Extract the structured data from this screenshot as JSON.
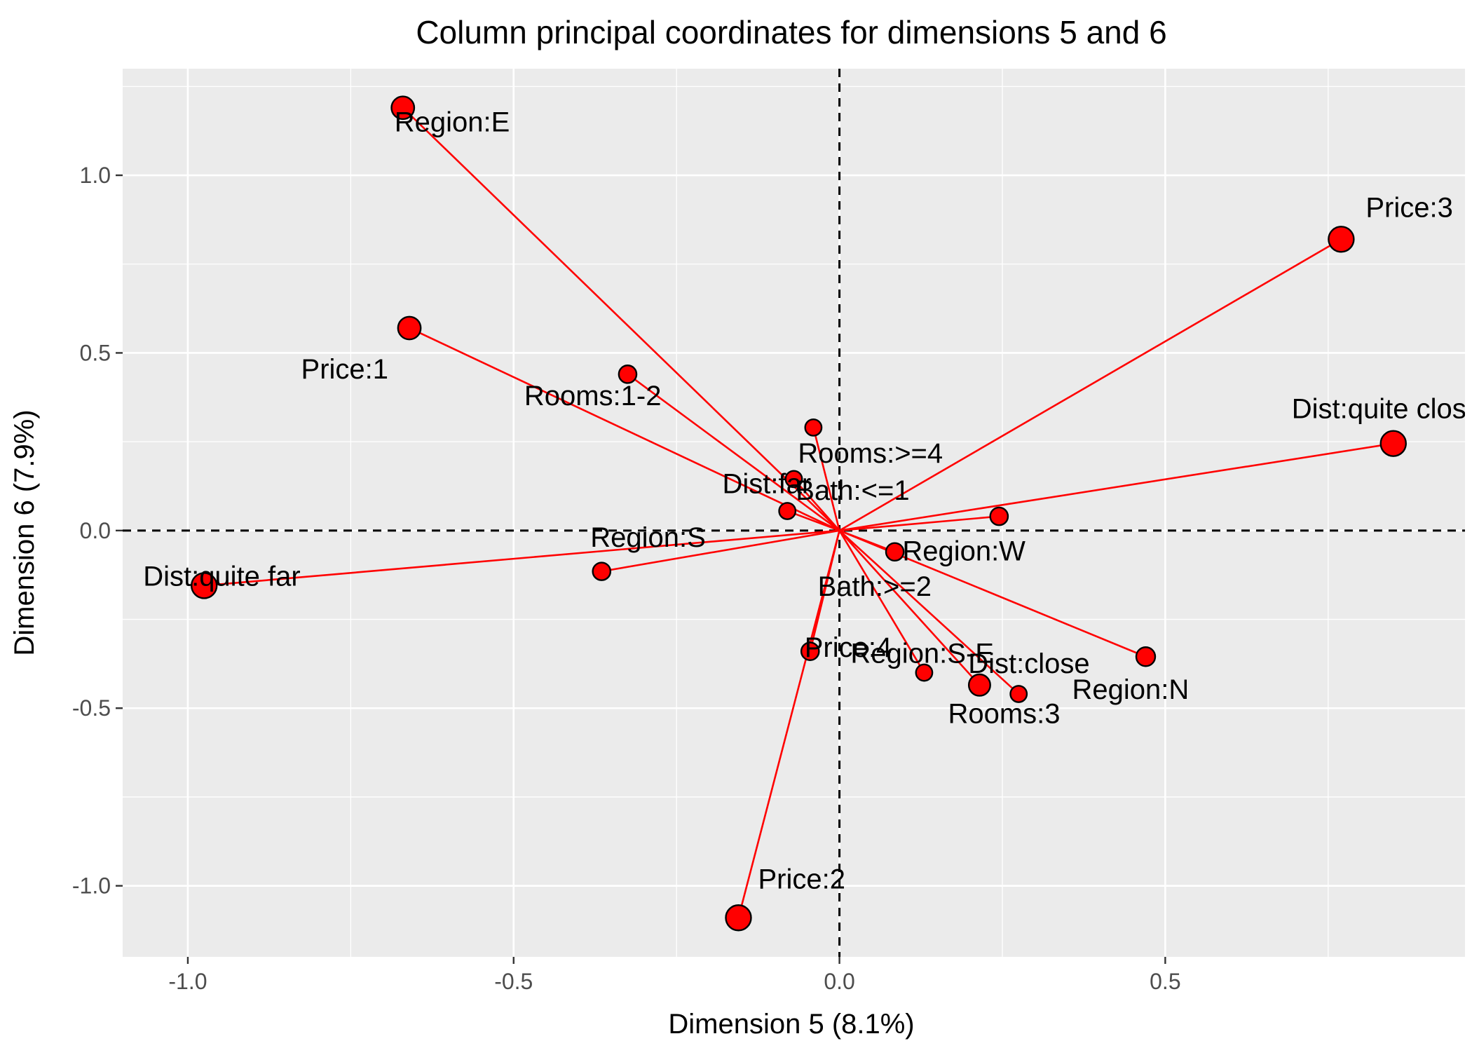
{
  "chart_data": {
    "type": "scatter",
    "title": "Column principal coordinates for dimensions 5 and 6",
    "xlabel": "Dimension 5 (8.1%)",
    "ylabel": "Dimension 6 (7.9%)",
    "xlim": [
      -1.1,
      0.96
    ],
    "ylim": [
      -1.2,
      1.3
    ],
    "x_ticks": [
      -1.0,
      -0.5,
      0.0,
      0.5
    ],
    "x_tick_labels": [
      "-1.0",
      "-0.5",
      "0.0",
      "0.5"
    ],
    "y_ticks": [
      -1.0,
      -0.5,
      0.0,
      0.5,
      1.0
    ],
    "y_tick_labels": [
      "-1.0",
      "-0.5",
      "0.0",
      "0.5",
      "1.0"
    ],
    "grid": true,
    "reference_lines": {
      "x": 0,
      "y": 0,
      "style": "dashed"
    },
    "vectors_from_origin": true,
    "colors": {
      "panel": "#EBEBEB",
      "grid": "#FFFFFF",
      "point_fill": "#FF0000",
      "segment": "#FF0000",
      "point_stroke": "#000000",
      "text": "#000000",
      "tick_text": "#4D4D4D"
    },
    "points": [
      {
        "label": "Region:E",
        "x": -0.67,
        "y": 1.19,
        "weight": 0.8
      },
      {
        "label": "Price:3",
        "x": 0.77,
        "y": 0.82,
        "weight": 1.0
      },
      {
        "label": "Price:1",
        "x": -0.66,
        "y": 0.57,
        "weight": 0.8
      },
      {
        "label": "Rooms:1-2",
        "x": -0.325,
        "y": 0.44,
        "weight": 0.4
      },
      {
        "label": "Dist:quite close",
        "x": 0.85,
        "y": 0.245,
        "weight": 1.0
      },
      {
        "label": "Rooms:>=4",
        "x": -0.04,
        "y": 0.29,
        "weight": 0.3
      },
      {
        "label": "Dist:far",
        "x": -0.07,
        "y": 0.145,
        "weight": 0.3
      },
      {
        "label": "Bath:<=1",
        "x": -0.08,
        "y": 0.055,
        "weight": 0.3
      },
      {
        "label": "Region:S",
        "x": -0.365,
        "y": -0.115,
        "weight": 0.4
      },
      {
        "label": "Dist:quite far",
        "x": -0.975,
        "y": -0.155,
        "weight": 1.0
      },
      {
        "label": "Region:W",
        "x": 0.245,
        "y": 0.04,
        "weight": 0.4
      },
      {
        "label": "Bath:>=2",
        "x": 0.085,
        "y": -0.06,
        "weight": 0.4
      },
      {
        "label": "Price:4",
        "x": -0.045,
        "y": -0.34,
        "weight": 0.4
      },
      {
        "label": "Region:S-E",
        "x": 0.13,
        "y": -0.4,
        "weight": 0.3
      },
      {
        "label": "Rooms:3",
        "x": 0.215,
        "y": -0.435,
        "weight": 0.7
      },
      {
        "label": "Dist:close",
        "x": 0.275,
        "y": -0.46,
        "weight": 0.3
      },
      {
        "label": "Region:N",
        "x": 0.47,
        "y": -0.355,
        "weight": 0.5
      },
      {
        "label": "Price:2",
        "x": -0.155,
        "y": -1.09,
        "weight": 1.0
      }
    ]
  }
}
